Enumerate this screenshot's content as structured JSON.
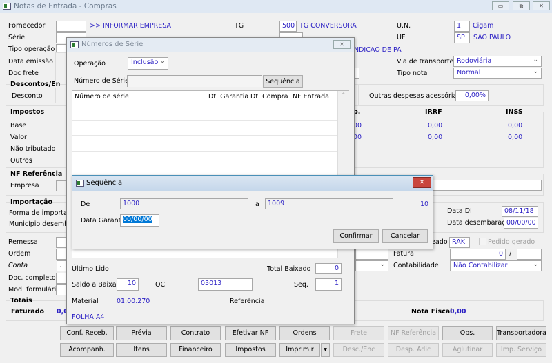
{
  "window": {
    "title": "Notas de Entrada - Compras",
    "minimize": "▭",
    "restore": "⧉",
    "close": "✕"
  },
  "form": {
    "fornecedor_label": "Fornecedor",
    "fornecedor_link": ">> INFORMAR EMPRESA",
    "serie_label": "Série",
    "tipo_operacao_label": "Tipo operação",
    "data_emissao_label": "Data emissão",
    "doc_frete_label": "Doc frete",
    "descontos_title": "Descontos/En",
    "desconto_label": "Desconto",
    "impostos_title": "Impostos",
    "base_label": "Base",
    "valor_label": "Valor",
    "nao_tributado_label": "Não tributado",
    "outros_label": "Outros",
    "nf_referencia_title": "NF Referência",
    "empresa_label": "Empresa",
    "importacao_title": "Importação",
    "forma_importacao_label": "Forma de importação",
    "municipio_label": "Município desembara",
    "remessa_label": "Remessa",
    "ordem_label": "Ordem",
    "conta_label": "Conta",
    "conta_value": ".",
    "doc_completo_label": "Doc. completo",
    "mod_formulario_label": "Mod. formulário",
    "totais_title": "Totais",
    "faturado_label": "Faturado",
    "faturado_value": "0,0",
    "tg_label": "TG",
    "tg_value": "500",
    "tg_name": "TG CONVERSORA",
    "un_label": "U.N.",
    "un_value": "1",
    "un_name": "Cigam",
    "uf_label": "UF",
    "uf_value": "SP",
    "uf_name": "SAO PAULO",
    "condicao_partial": "NDICAO DE PA",
    "via_transporte_label": "Via de transporte",
    "via_transporte_value": "Rodoviária",
    "tipo_nota_label": "Tipo nota",
    "tipo_nota_value": "Normal",
    "outras_despesas_label": "Outras despesas acessórias",
    "outras_despesas_value": "0,00%",
    "tax_cols": {
      "partial": "b.",
      "irrf": "IRRF",
      "inss": "INSS"
    },
    "tax_values": {
      "base": [
        "00",
        "0,00",
        "0,00"
      ],
      "valor": [
        "00",
        "0,00",
        "0,00"
      ]
    },
    "data_di_label": "Data DI",
    "data_di_value": "08/11/18",
    "data_desemb_label": "Data desembaraço",
    "data_desemb_value": "00/00/00",
    "zado_partial": "zado",
    "rak_value": "RAK",
    "pedido_gerado_label": "Pedido gerado",
    "fatura_label": "Fatura",
    "fatura_value": "0",
    "fatura_sep": "/",
    "contabilidade_label": "Contabilidade",
    "contabilidade_value": "Não Contabilizar",
    "nota_fiscal_label": "Nota Fiscal",
    "nota_fiscal_value": "0,00"
  },
  "buttons_row1": [
    {
      "label": "Conf. Receb.",
      "disabled": false
    },
    {
      "label": "Prévia",
      "disabled": false
    },
    {
      "label": "Contrato",
      "disabled": false
    },
    {
      "label": "Efetivar NF",
      "disabled": false
    },
    {
      "label": "Ordens",
      "disabled": false
    },
    {
      "label": "Frete",
      "disabled": true
    },
    {
      "label": "NF Referência",
      "disabled": true
    },
    {
      "label": "Obs.",
      "disabled": false
    },
    {
      "label": "Transportadora",
      "disabled": false
    }
  ],
  "buttons_row2": [
    {
      "label": "Acompanh.",
      "disabled": false
    },
    {
      "label": "Itens",
      "disabled": false
    },
    {
      "label": "Financeiro",
      "disabled": false
    },
    {
      "label": "Impostos",
      "disabled": false
    },
    {
      "label": "Imprimir",
      "disabled": false
    },
    {
      "label": "▾",
      "disabled": false
    },
    {
      "label": "Desc./Enc",
      "disabled": true
    },
    {
      "label": "Desp. Adic",
      "disabled": true
    },
    {
      "label": "Aglutinar",
      "disabled": true
    },
    {
      "label": "Imp. Serviço",
      "disabled": true
    }
  ],
  "serial_dialog": {
    "title": "Números de Série",
    "close": "✕",
    "operacao_label": "Operação",
    "operacao_value": "Inclusão",
    "numero_serie_label": "Número de Série",
    "numero_serie_value": "",
    "sequencia_button": "Sequência",
    "columns": [
      "Número de série",
      "Dt. Garantia",
      "Dt. Compra",
      "NF Entrada"
    ],
    "ultimo_lido_label": "Último Lido",
    "total_baixado_label": "Total Baixado",
    "total_baixado_value": "0",
    "saldo_label": "Saldo a Baixar",
    "saldo_value": "10",
    "oc_label": "OC",
    "oc_value": "03013",
    "seq_label": "Seq.",
    "seq_value": "1",
    "material_label": "Material",
    "material_value": "01.00.270",
    "referencia_label": "Referência",
    "descricao": "FOLHA A4"
  },
  "seq_dialog": {
    "title": "Sequência",
    "close": "✕",
    "de_label": "De",
    "de_value": "1000",
    "a_label": "a",
    "a_value": "1009",
    "count": "10",
    "data_garantia_label": "Data Garantia",
    "data_garantia_value": "00/00/00",
    "confirmar": "Confirmar",
    "cancelar": "Cancelar"
  }
}
